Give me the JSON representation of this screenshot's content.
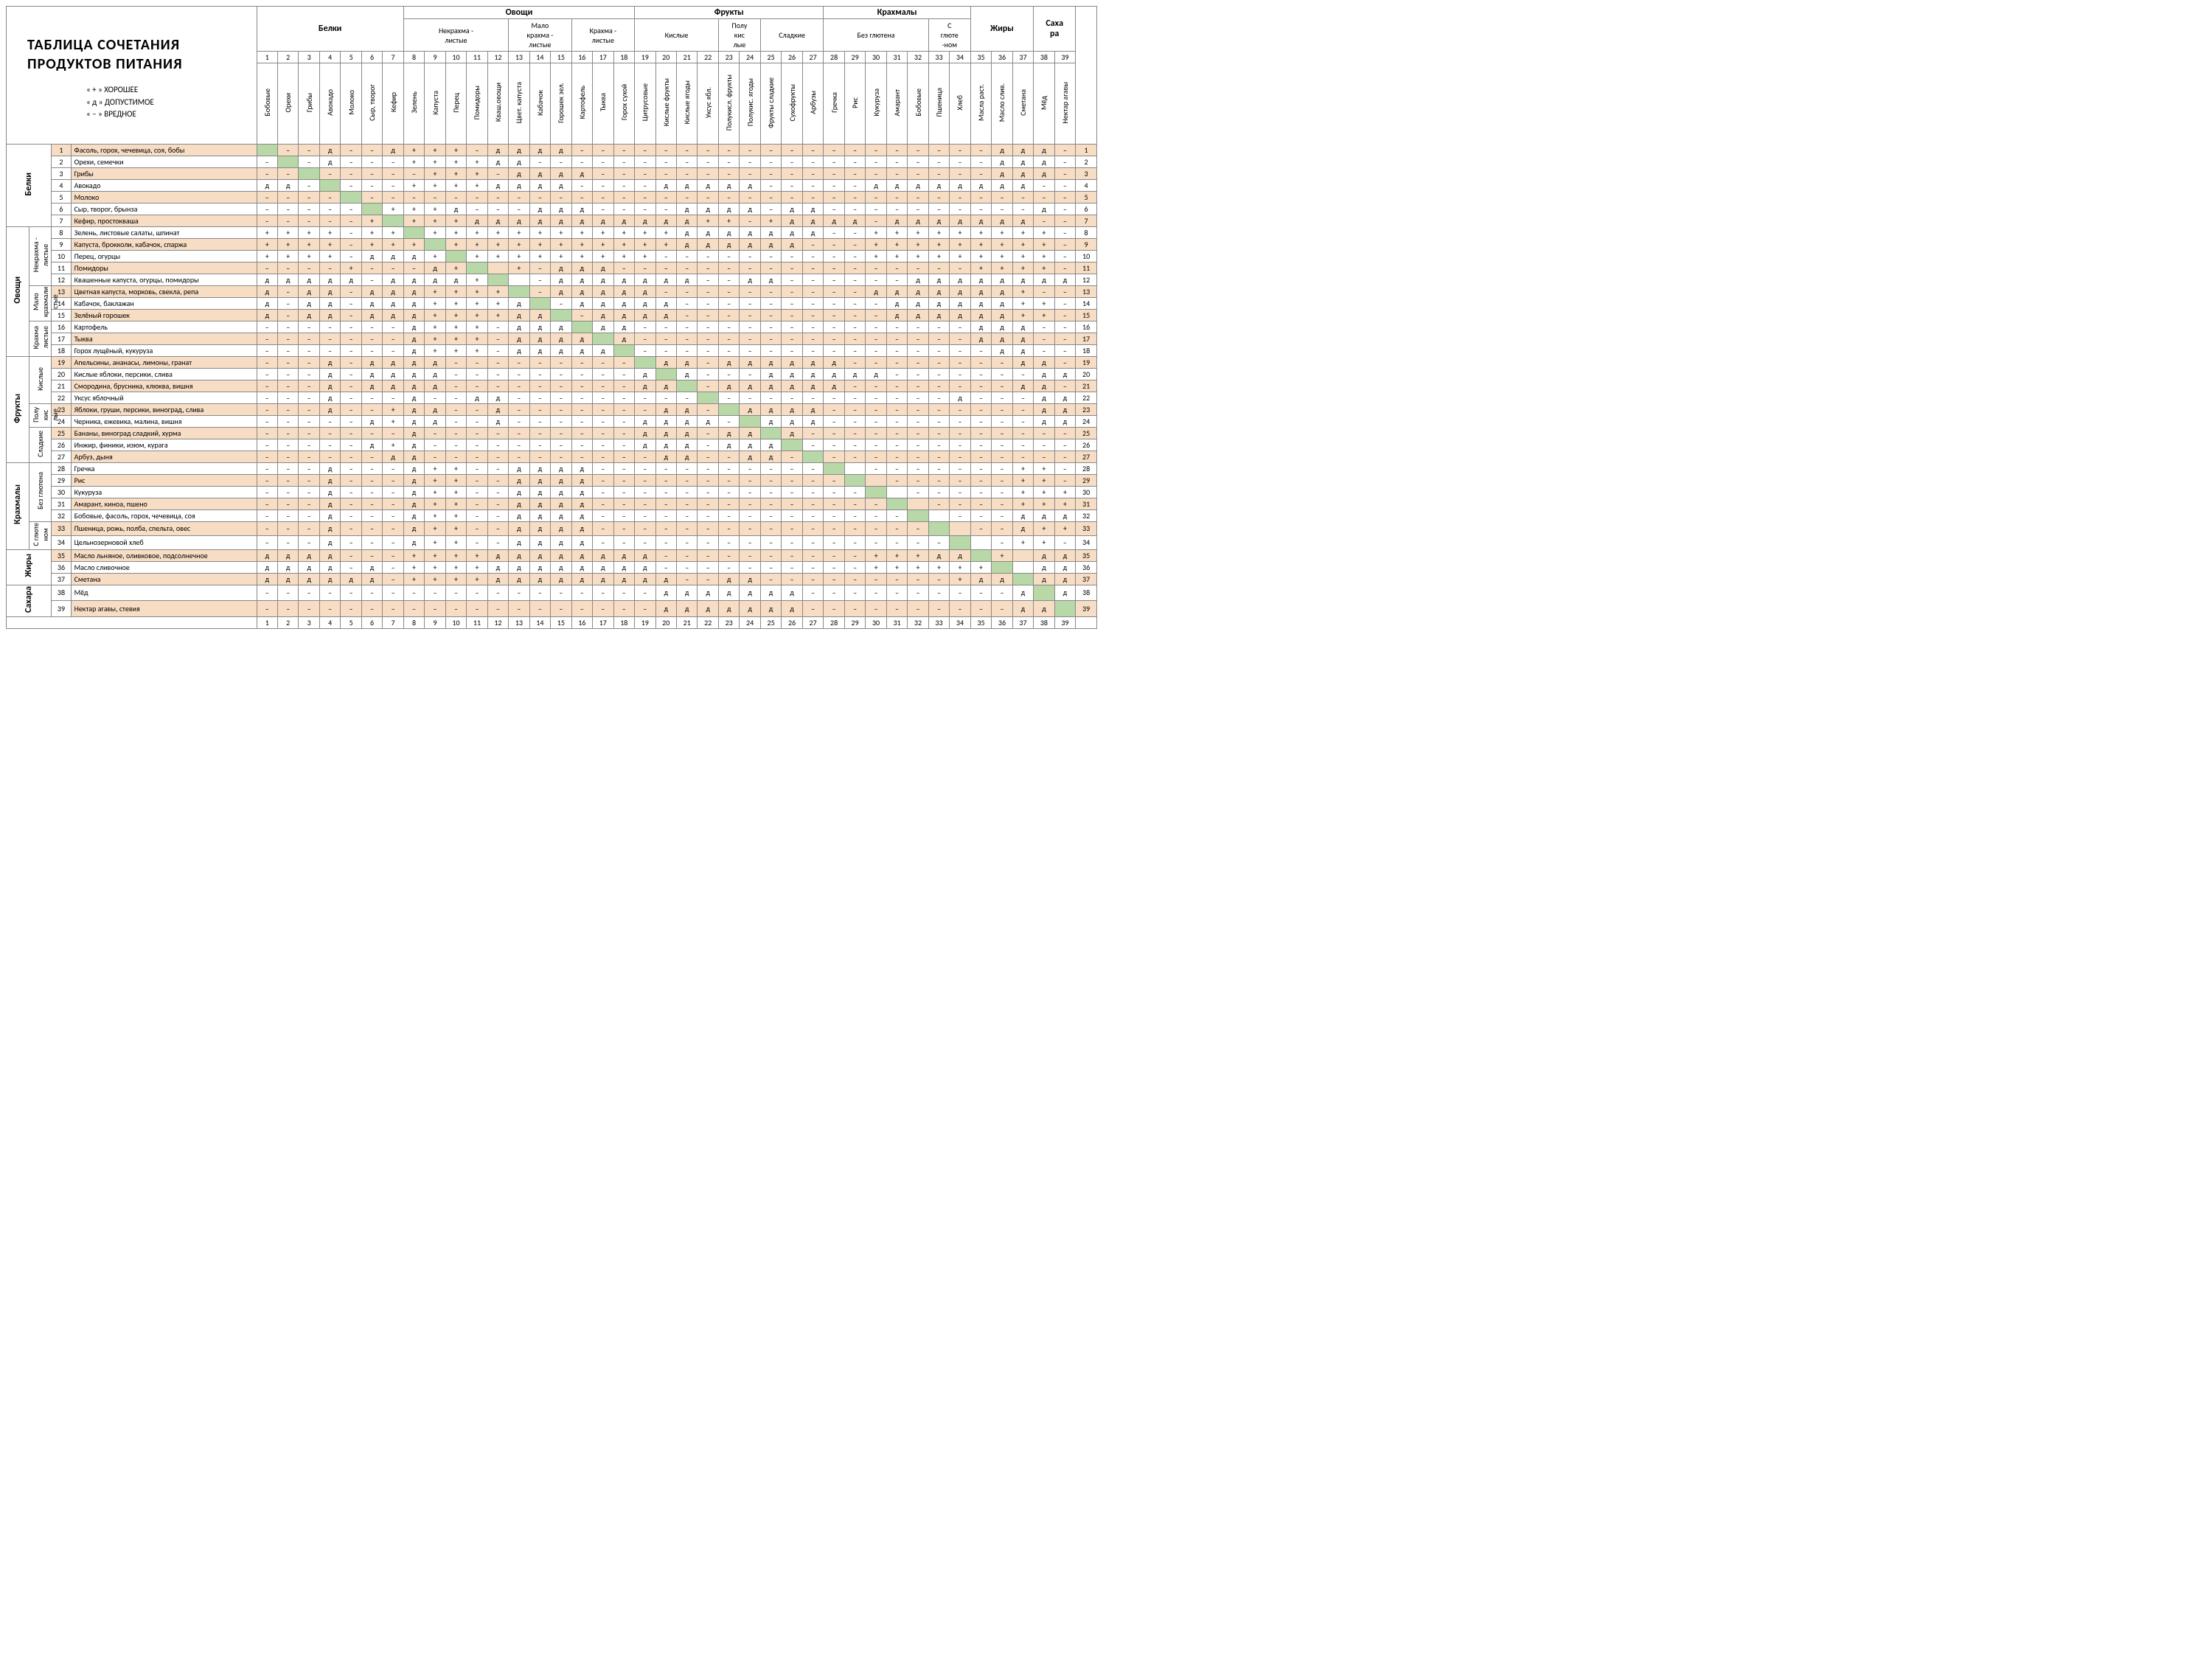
{
  "title": "ТАБЛИЦА СОЧЕТАНИЯ\nПРОДУКТОВ ПИТАНИЯ",
  "legend": [
    "« + »   ХОРОШЕЕ",
    "« д »   ДОПУСТИМОЕ",
    "« – »   ВРЕДНОЕ"
  ],
  "colors": {
    "peach": "#f7ddc4",
    "diag": "#b8d8a8",
    "border": "#888888"
  },
  "col_groups": [
    {
      "label": "Белки",
      "span": 7
    },
    {
      "label": "Овощи",
      "span": 11,
      "subs": [
        {
          "label": "Некрахма -\nлистые",
          "span": 5
        },
        {
          "label": "Мало\nкрахма -\nлистые",
          "span": 3
        },
        {
          "label": "Крахма -\nлистые",
          "span": 3
        }
      ]
    },
    {
      "label": "Фрукты",
      "span": 9,
      "subs": [
        {
          "label": "Кислые",
          "span": 4
        },
        {
          "label": "Полу\nкис\nлые",
          "span": 2
        },
        {
          "label": "Сладкие",
          "span": 3
        }
      ]
    },
    {
      "label": "Крахмалы",
      "span": 7,
      "subs": [
        {
          "label": "Без глютена",
          "span": 5
        },
        {
          "label": "С\nглюте\n-ном",
          "span": 2
        }
      ]
    },
    {
      "label": "Жиры",
      "span": 3
    },
    {
      "label": "Саха\nра",
      "span": 2
    }
  ],
  "columns": [
    "Бобовые",
    "Орехи",
    "Грибы",
    "Авокадо",
    "Молоко",
    "Сыр, творог",
    "Кефир",
    "Зелень",
    "Капуста",
    "Перец",
    "Помидоры",
    "Кваш.овощи",
    "Цвет. капуста",
    "Кабачок",
    "Горошек зел.",
    "Картофель",
    "Тыква",
    "Горох сухой",
    "Цитрусовые",
    "Кислые фрукты",
    "Кислые ягоды",
    "Уксус ябл.",
    "Полукисл. фрукты",
    "Полукис. ягоды",
    "Фрукты сладкие",
    "Сухофрукты",
    "Арбузы",
    "Гречка",
    "Рис",
    "Кукуруза",
    "Амарант",
    "Бобовые",
    "Пшеница",
    "Хлеб",
    "Масла раст.",
    "Масло слив.",
    "Сметана",
    "Мёд",
    "Нектар агавы"
  ],
  "row_groups": [
    {
      "label": "Белки",
      "span": 7,
      "subs": []
    },
    {
      "label": "Овощи",
      "span": 11,
      "subs": [
        {
          "label": "Некрахма -\nлистые",
          "span": 5
        },
        {
          "label": "Мало\nкрахмали\nстые",
          "span": 3
        },
        {
          "label": "Крахма\nлистые",
          "span": 3
        }
      ]
    },
    {
      "label": "Фрукты",
      "span": 9,
      "subs": [
        {
          "label": "Кислые",
          "span": 4
        },
        {
          "label": "Полу\nкис\nлые",
          "span": 2
        },
        {
          "label": "Сладкие",
          "span": 3
        }
      ]
    },
    {
      "label": "Крахмалы",
      "span": 7,
      "subs": [
        {
          "label": "Без глютена",
          "span": 5
        },
        {
          "label": "С глюте\nном",
          "span": 2
        }
      ]
    },
    {
      "label": "Жиры",
      "span": 3,
      "subs": []
    },
    {
      "label": "Сахара",
      "span": 2,
      "subs": []
    }
  ],
  "rows": [
    {
      "n": 1,
      "name": "Фасоль, горох, чечевица, соя, бобы"
    },
    {
      "n": 2,
      "name": "Орехи, семечки"
    },
    {
      "n": 3,
      "name": "Грибы"
    },
    {
      "n": 4,
      "name": "Авокадо"
    },
    {
      "n": 5,
      "name": "Молоко"
    },
    {
      "n": 6,
      "name": "Сыр, творог, брынза"
    },
    {
      "n": 7,
      "name": "Кефир, простокваша"
    },
    {
      "n": 8,
      "name": "Зелень, листовые салаты, шпинат"
    },
    {
      "n": 9,
      "name": "Капуста, брокколи, кабачок, спаржа"
    },
    {
      "n": 10,
      "name": "Перец, огурцы"
    },
    {
      "n": 11,
      "name": "Помидоры"
    },
    {
      "n": 12,
      "name": "Квашенные капуста, огурцы, помидоры"
    },
    {
      "n": 13,
      "name": "Цветная капуста, морковь, свекла, репа"
    },
    {
      "n": 14,
      "name": "Кабачок, баклажан"
    },
    {
      "n": 15,
      "name": "Зелёный горошек"
    },
    {
      "n": 16,
      "name": "Картофель"
    },
    {
      "n": 17,
      "name": "Тыква"
    },
    {
      "n": 18,
      "name": "Горох лущёный, кукуруза"
    },
    {
      "n": 19,
      "name": "Апельсины, ананасы, лимоны, гранат"
    },
    {
      "n": 20,
      "name": "Кислые яблоки, персики, слива"
    },
    {
      "n": 21,
      "name": "Смородина, брусника, клюква, вишня"
    },
    {
      "n": 22,
      "name": "Уксус яблочный"
    },
    {
      "n": 23,
      "name": "Яблоки, груши, персики, виноград, слива"
    },
    {
      "n": 24,
      "name": "Черника, ежевика, малина, вишня"
    },
    {
      "n": 25,
      "name": "Бананы, виноград сладкий, хурма"
    },
    {
      "n": 26,
      "name": "Инжир, финики, изюм, курага"
    },
    {
      "n": 27,
      "name": "Арбуз, дыня"
    },
    {
      "n": 28,
      "name": "Гречка"
    },
    {
      "n": 29,
      "name": "Рис"
    },
    {
      "n": 30,
      "name": "Кукуруза"
    },
    {
      "n": 31,
      "name": "Амарант, киноа, пшено"
    },
    {
      "n": 32,
      "name": "Бобовые, фасоль, горох, чечевица, соя"
    },
    {
      "n": 33,
      "name": "Пшеница, рожь, полба, спельта, овес"
    },
    {
      "n": 34,
      "name": "Цельнозерновой хлеб"
    },
    {
      "n": 35,
      "name": "Масло льняное, оливковое, подсолнечное"
    },
    {
      "n": 36,
      "name": "Масло сливочное"
    },
    {
      "n": 37,
      "name": "Сметана"
    },
    {
      "n": 38,
      "name": "Мёд"
    },
    {
      "n": 39,
      "name": "Нектар агавы, стевия"
    }
  ],
  "matrix": [
    " ––д––д+++–дддд––––––––––––––––––––ддд––",
    "– –д–––++++дд––––––––––––––––––––––ддд––",
    "–– –––––+++–дддд–––––––––––––––––––ддд––",
    "дд– –––++++дддд––––ддддд–––––дддддддд–––",
    "–––– –––––––––––––––––––––––––––––––––––",
    "––––– +++д–––ддд––––дддд–дд––––––––––д––",
    "–––––+ +++ддддддддддд++–+дддд–ддддддд–––",
    "++++–++ ++++++++++++ддддддд––+++++++++––",
    "++++–+++ +++++++++++дддддд–––+++++++++––",
    "++++–ддд+ +++++++++––––––––––+++++++++––",
    "––––+–––д++ +–ддд–––––––––––––––––++++––",
    "ддддд–дддд++ –ддддддд––дд––––––дддддддд–д––",
    "д–дд–ддд++++ –ддддд––––––––––ддддддд+––",
    "д–дд–ддд++++д –ддддд––––––––––дддддд++––",
    "д–дд–ддд++++дд –дддд––––––––––дддддд++––",
    "–––––––д+++–ддд дд––––––––––––––––ддд––",
    "–––––––д+++–дддд д––––––––––––––––ддд––",
    "–––––––д+++–ддддд –––––––––––––––––дд––",
    "–––д–дддд––––––––– дд–дддддд––––––––дд",
    "–––д–дддд–––––––––д д–––дддддд–––––––дд",
    "–––д–дддд–––––––––дд –дддддд––––––––дд",
    "–––д–––д––дд––––––––– –––––––––––д–––дд",
    "–––д––+дд––д–––––––дд– дддд––––––––––дд",
    "–––––д+дд––д––––––дддд– ддд––––––––––дд",
    "–––––––д––––––––––ддд–дд д–––––––––––––",
    "–––––д+д––––––––––ддд–ддд ––––––––––––––",
    "––––––дд–––––––––––дд––дд– ––––––––––––",
    "–––д–––д++––дддд–––––––––––– –––––––++–––",
    "–––д–––д++––дддд––––––––––––– ––––––++–––",
    "–––д–––д++––дддд–––––––––––––– –––––+++––",
    "–––д–––д++––дддд––––––––––––––– ––––+++––",
    "–––д–––д++––дддд–––––––––––––––– –––ддд––",
    "–––д–––д++––дддд––––––––––––––––– ––д++––",
    "–––д–––д++––дддд–––––––––––––––––– –++–––",
    "дддд–––++++дддддддд––––––––––+++ддд+ ддд",
    "дддд–д–++++дддддддд––––––––––++++++д дд",
    "дддддд–++++ддддддддд––дд–––––––––+ддддд дд",
    "–––––––––––––––––––ддддддд––––––––––дддд д",
    "–––––––––––––––––––ддддддд––––––––––ддддд "
  ]
}
